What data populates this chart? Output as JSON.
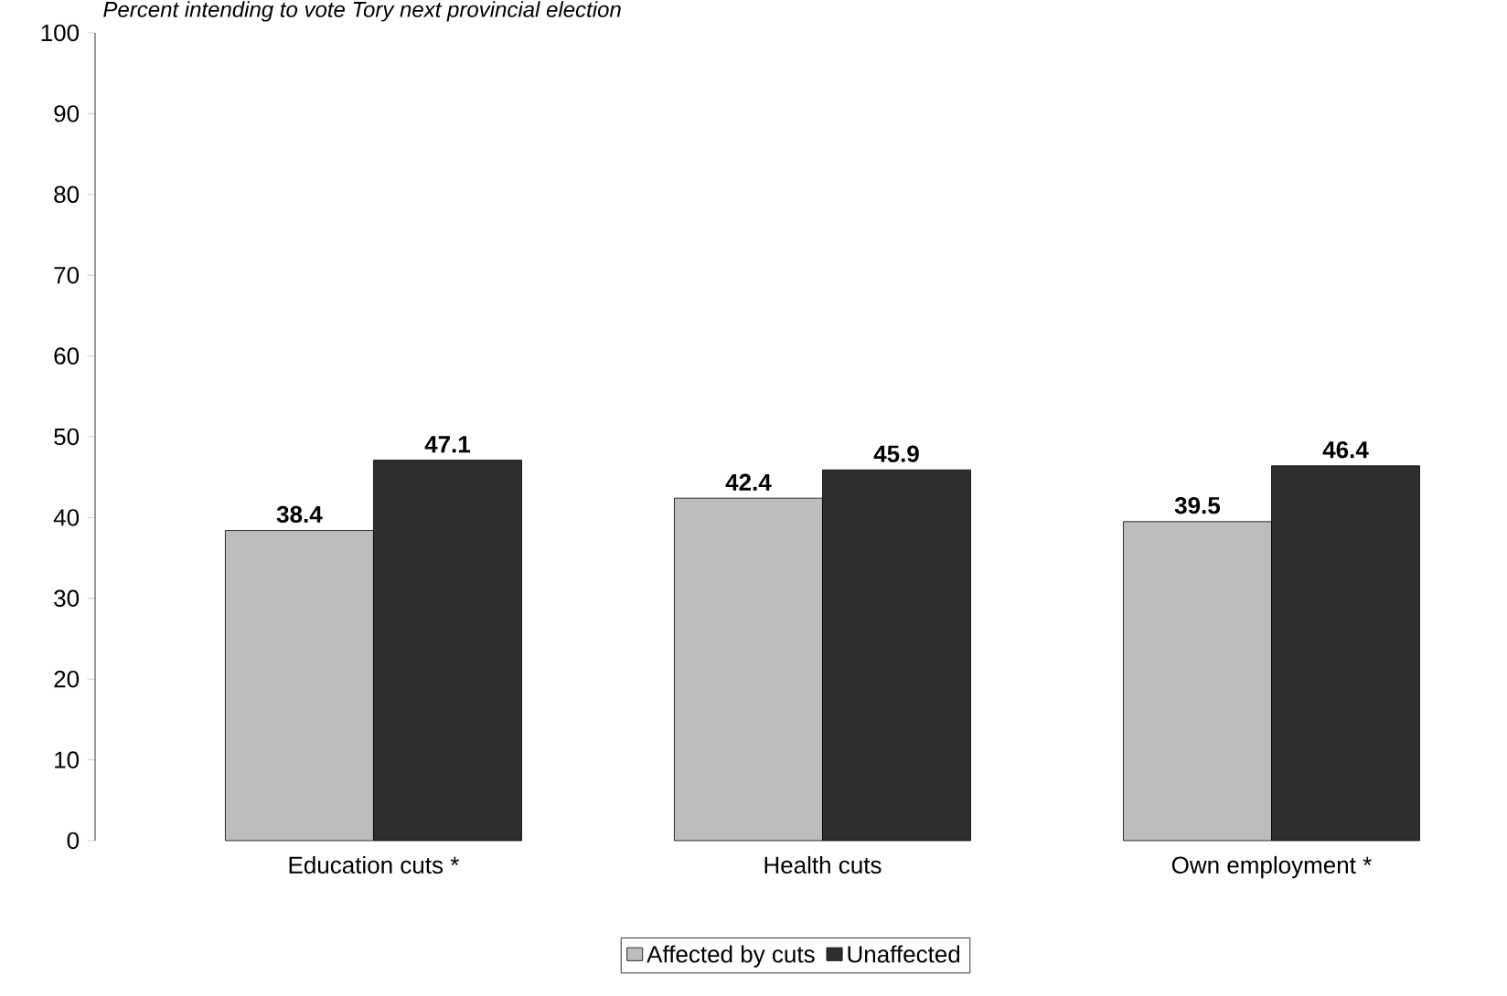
{
  "chart_data": {
    "type": "bar",
    "title": "Percent intending to vote Tory next provincial election",
    "categories": [
      "Education cuts *",
      "Health cuts",
      "Own employment *"
    ],
    "series": [
      {
        "name": "Affected by cuts",
        "color": "#bdbdbd",
        "values": [
          38.4,
          42.4,
          39.5
        ]
      },
      {
        "name": "Unaffected",
        "color": "#2e2e2e",
        "values": [
          47.1,
          45.9,
          46.4
        ]
      }
    ],
    "ylim": [
      0,
      100
    ],
    "yticks": [
      0,
      10,
      20,
      30,
      40,
      50,
      60,
      70,
      80,
      90,
      100
    ],
    "data_labels": true,
    "legend": "bottom",
    "grid": false
  }
}
